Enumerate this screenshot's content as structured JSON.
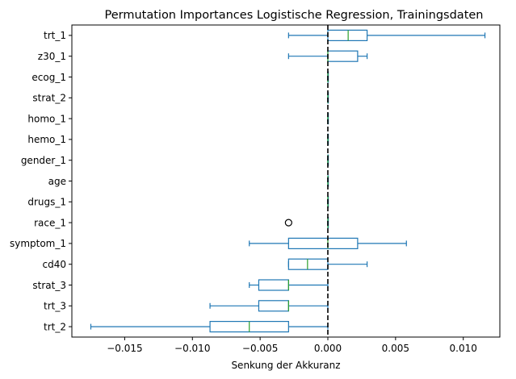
{
  "chart_data": {
    "type": "box",
    "orientation": "horizontal",
    "title": "Permutation Importances Logistische Regression, Trainingsdaten",
    "xlabel": "Senkung der Akkuranz",
    "ylabel": "",
    "xlim": [
      -0.0189,
      0.0127
    ],
    "xticks": [
      -0.015,
      -0.01,
      -0.005,
      0.0,
      0.005,
      0.01
    ],
    "xtick_labels": [
      "−0.015",
      "−0.010",
      "−0.005",
      "0.000",
      "0.005",
      "0.010"
    ],
    "reference_line": {
      "x": 0.0,
      "style": "dashed",
      "color": "#000000"
    },
    "colors": {
      "box": "#1f77b4",
      "median": "#2ca02c",
      "flier": "#000000"
    },
    "grid": false,
    "legend": "none",
    "boxes": [
      {
        "label": "trt_1",
        "whisker_low": -0.0029,
        "q1": 0.0,
        "median": 0.0015,
        "q3": 0.0029,
        "whisker_high": 0.0116,
        "fliers": []
      },
      {
        "label": "z30_1",
        "whisker_low": -0.0029,
        "q1": 0.0,
        "median": 0.0,
        "q3": 0.0022,
        "whisker_high": 0.0029,
        "fliers": []
      },
      {
        "label": "ecog_1",
        "whisker_low": 0.0,
        "q1": 0.0,
        "median": 0.0,
        "q3": 0.0,
        "whisker_high": 0.0,
        "fliers": []
      },
      {
        "label": "strat_2",
        "whisker_low": 0.0,
        "q1": 0.0,
        "median": 0.0,
        "q3": 0.0,
        "whisker_high": 0.0,
        "fliers": []
      },
      {
        "label": "homo_1",
        "whisker_low": 0.0,
        "q1": 0.0,
        "median": 0.0,
        "q3": 0.0,
        "whisker_high": 0.0,
        "fliers": []
      },
      {
        "label": "hemo_1",
        "whisker_low": 0.0,
        "q1": 0.0,
        "median": 0.0,
        "q3": 0.0,
        "whisker_high": 0.0,
        "fliers": []
      },
      {
        "label": "gender_1",
        "whisker_low": 0.0,
        "q1": 0.0,
        "median": 0.0,
        "q3": 0.0,
        "whisker_high": 0.0,
        "fliers": []
      },
      {
        "label": "age",
        "whisker_low": 0.0,
        "q1": 0.0,
        "median": 0.0,
        "q3": 0.0,
        "whisker_high": 0.0,
        "fliers": []
      },
      {
        "label": "drugs_1",
        "whisker_low": 0.0,
        "q1": 0.0,
        "median": 0.0,
        "q3": 0.0,
        "whisker_high": 0.0,
        "fliers": []
      },
      {
        "label": "race_1",
        "whisker_low": 0.0,
        "q1": 0.0,
        "median": 0.0,
        "q3": 0.0,
        "whisker_high": 0.0,
        "fliers": [
          -0.0029
        ]
      },
      {
        "label": "symptom_1",
        "whisker_low": -0.0058,
        "q1": -0.0029,
        "median": 0.0,
        "q3": 0.0022,
        "whisker_high": 0.0058,
        "fliers": []
      },
      {
        "label": "cd40",
        "whisker_low": -0.0029,
        "q1": -0.0029,
        "median": -0.0015,
        "q3": 0.0,
        "whisker_high": 0.0029,
        "fliers": []
      },
      {
        "label": "strat_3",
        "whisker_low": -0.0058,
        "q1": -0.0051,
        "median": -0.0029,
        "q3": -0.0029,
        "whisker_high": 0.0,
        "fliers": []
      },
      {
        "label": "trt_3",
        "whisker_low": -0.0087,
        "q1": -0.0051,
        "median": -0.0029,
        "q3": -0.0029,
        "whisker_high": 0.0,
        "fliers": []
      },
      {
        "label": "trt_2",
        "whisker_low": -0.0175,
        "q1": -0.0087,
        "median": -0.0058,
        "q3": -0.0029,
        "whisker_high": 0.0,
        "fliers": []
      }
    ]
  }
}
